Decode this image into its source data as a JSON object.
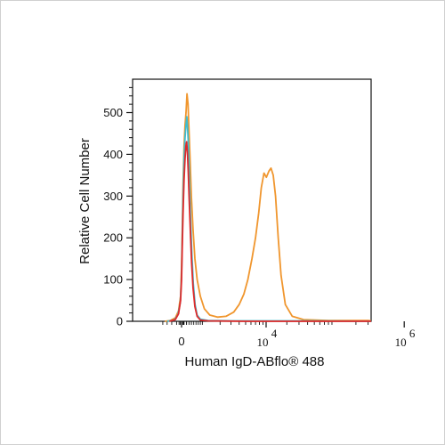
{
  "chart_data": {
    "type": "line",
    "title": "",
    "xlabel": "Human IgD-ABflo® 488",
    "ylabel": "Relative Cell Number",
    "x_scale": "biexponential",
    "xlim": [
      -1000,
      10000000
    ],
    "ylim": [
      0,
      580
    ],
    "grid": false,
    "legend": "none",
    "y_ticks": [
      {
        "value": 0,
        "label": "0"
      },
      {
        "value": 100,
        "label": "100"
      },
      {
        "value": 200,
        "label": "200"
      },
      {
        "value": 300,
        "label": "300"
      },
      {
        "value": 400,
        "label": "400"
      },
      {
        "value": 500,
        "label": "500"
      }
    ],
    "x_ticks": [
      {
        "value": 0,
        "label": "0"
      },
      {
        "value": 10000,
        "base": "10",
        "exp": "4"
      },
      {
        "value": 1000000,
        "base": "10",
        "exp": "6"
      }
    ],
    "series": [
      {
        "color": "#f0962e",
        "points": [
          [
            -700,
            0
          ],
          [
            -450,
            2
          ],
          [
            -250,
            8
          ],
          [
            -120,
            25
          ],
          [
            -40,
            60
          ],
          [
            0,
            130
          ],
          [
            30,
            220
          ],
          [
            60,
            330
          ],
          [
            100,
            420
          ],
          [
            140,
            470
          ],
          [
            180,
            500
          ],
          [
            220,
            545
          ],
          [
            260,
            520
          ],
          [
            300,
            460
          ],
          [
            350,
            380
          ],
          [
            400,
            300
          ],
          [
            470,
            220
          ],
          [
            550,
            150
          ],
          [
            650,
            100
          ],
          [
            800,
            60
          ],
          [
            1000,
            30
          ],
          [
            1300,
            15
          ],
          [
            1800,
            10
          ],
          [
            2500,
            12
          ],
          [
            3300,
            22
          ],
          [
            4000,
            40
          ],
          [
            4700,
            65
          ],
          [
            5400,
            100
          ],
          [
            6200,
            150
          ],
          [
            7000,
            200
          ],
          [
            7800,
            260
          ],
          [
            8500,
            320
          ],
          [
            9300,
            355
          ],
          [
            10100,
            345
          ],
          [
            11000,
            360
          ],
          [
            11800,
            367
          ],
          [
            12700,
            350
          ],
          [
            13700,
            300
          ],
          [
            15000,
            200
          ],
          [
            16500,
            110
          ],
          [
            19000,
            40
          ],
          [
            24000,
            12
          ],
          [
            35000,
            4
          ],
          [
            80000,
            2
          ],
          [
            300000,
            2
          ],
          [
            1000000,
            1
          ],
          [
            8000000,
            1
          ]
        ]
      },
      {
        "color": "#3fbccf",
        "points": [
          [
            -600,
            0
          ],
          [
            -300,
            3
          ],
          [
            -150,
            15
          ],
          [
            -50,
            45
          ],
          [
            0,
            110
          ],
          [
            30,
            200
          ],
          [
            60,
            300
          ],
          [
            100,
            390
          ],
          [
            140,
            440
          ],
          [
            180,
            470
          ],
          [
            210,
            490
          ],
          [
            240,
            465
          ],
          [
            280,
            420
          ],
          [
            320,
            330
          ],
          [
            370,
            240
          ],
          [
            420,
            160
          ],
          [
            480,
            90
          ],
          [
            560,
            40
          ],
          [
            650,
            15
          ],
          [
            800,
            5
          ],
          [
            1200,
            2
          ],
          [
            3000,
            1
          ],
          [
            10000,
            1
          ],
          [
            40000,
            1
          ],
          [
            8000000,
            0
          ]
        ]
      },
      {
        "color": "#e02a2a",
        "points": [
          [
            -500,
            0
          ],
          [
            -250,
            4
          ],
          [
            -120,
            18
          ],
          [
            -40,
            50
          ],
          [
            0,
            100
          ],
          [
            30,
            180
          ],
          [
            60,
            260
          ],
          [
            100,
            340
          ],
          [
            140,
            390
          ],
          [
            175,
            420
          ],
          [
            205,
            430
          ],
          [
            235,
            405
          ],
          [
            270,
            360
          ],
          [
            310,
            290
          ],
          [
            360,
            210
          ],
          [
            410,
            140
          ],
          [
            470,
            80
          ],
          [
            550,
            35
          ],
          [
            650,
            12
          ],
          [
            800,
            3
          ],
          [
            1200,
            1
          ],
          [
            5000,
            0
          ],
          [
            8000000,
            0
          ]
        ]
      }
    ]
  }
}
